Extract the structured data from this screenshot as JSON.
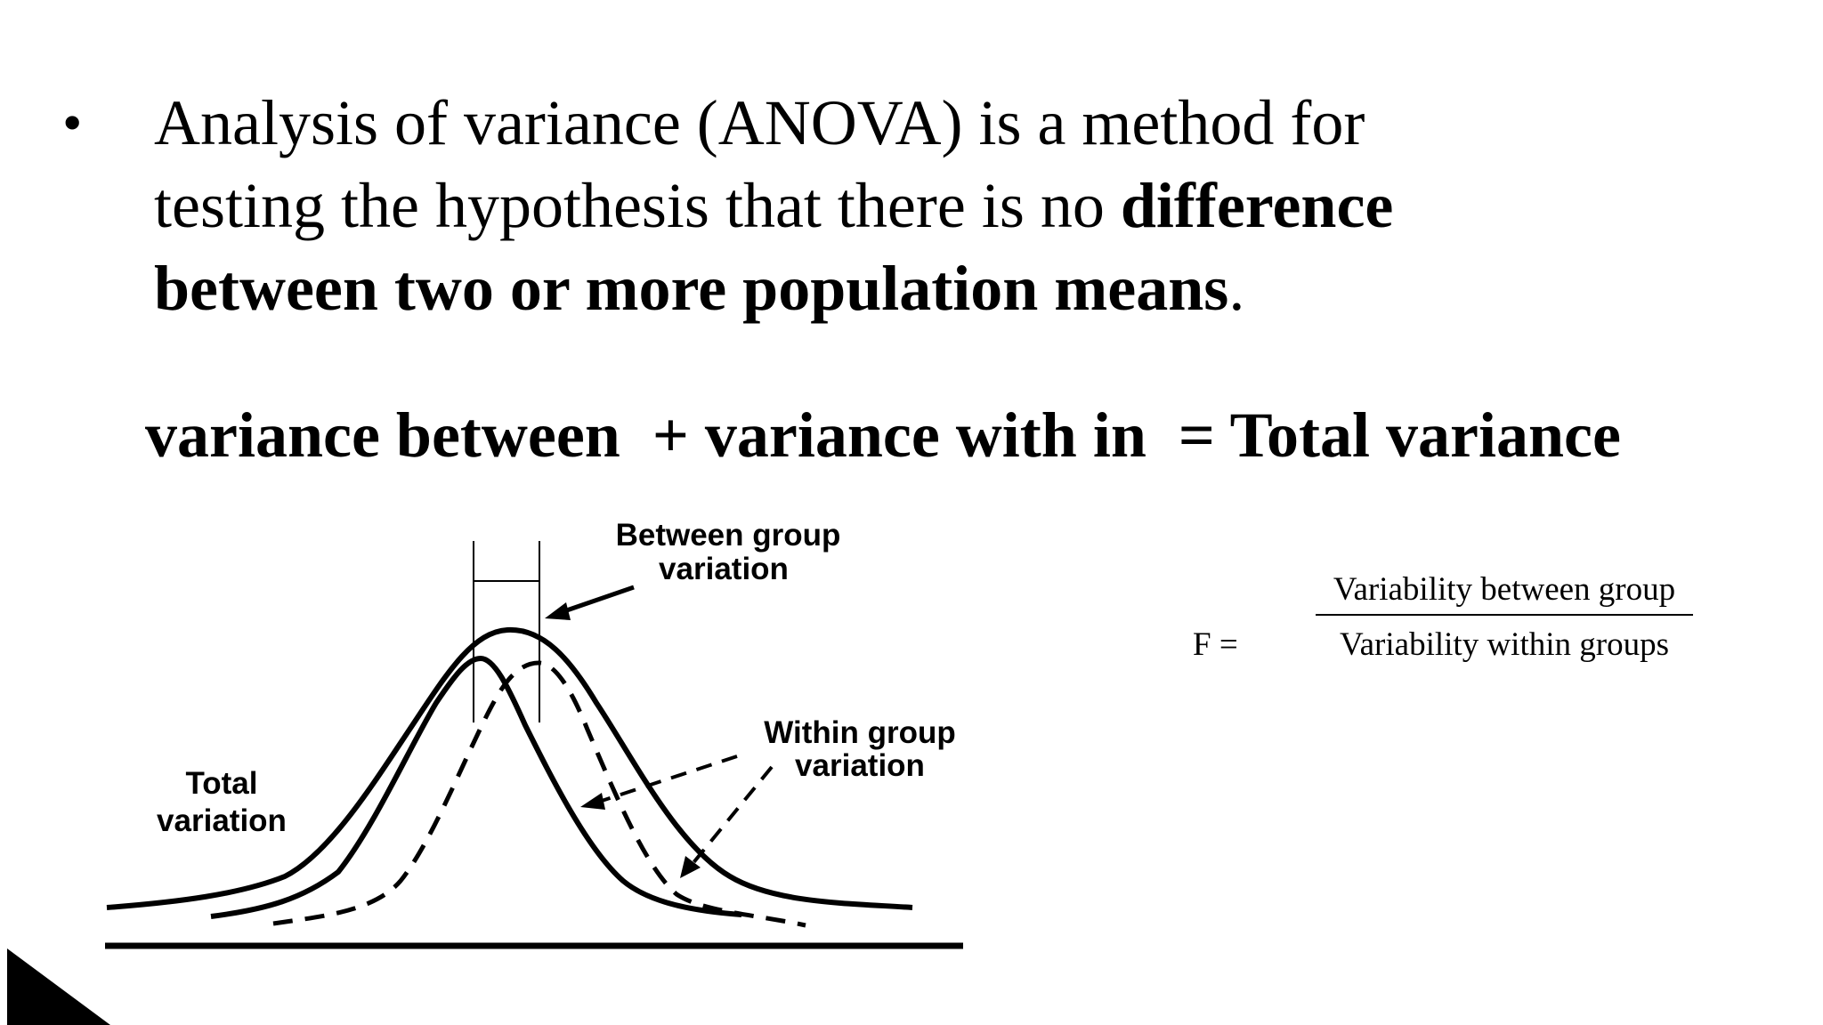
{
  "bullet": {
    "symbol": "•",
    "text_part1": "Analysis of variance (ANOVA) is a method for testing the hypothesis that there is no ",
    "text_bold": "difference between two or more population means",
    "text_part2": "."
  },
  "equation": {
    "text": "variance between  + variance with in  = Total variance"
  },
  "diagram": {
    "label_between_line1": "Between group",
    "label_between_line2": "variation",
    "label_within_line1": "Within group",
    "label_within_line2": "variation",
    "label_total_line1": "Total",
    "label_total_line2": "variation"
  },
  "formula": {
    "lhs": "F =",
    "numerator": "Variability between group",
    "denominator": "Variability within groups"
  }
}
